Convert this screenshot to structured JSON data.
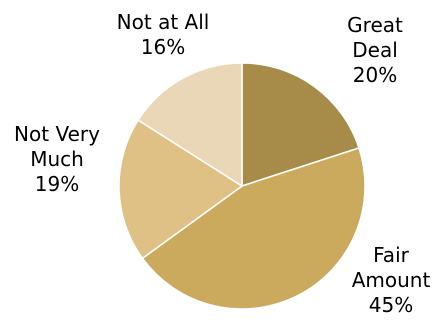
{
  "chart_data": {
    "type": "pie",
    "categories": [
      "Great Deal",
      "Fair Amount",
      "Not Very Much",
      "Not at All"
    ],
    "values": [
      20,
      45,
      19,
      16
    ],
    "value_suffix": "%",
    "colors": [
      "#a78b48",
      "#cbaa5e",
      "#dfc085",
      "#ead7b7"
    ],
    "slices": [
      {
        "label_lines": [
          "Great",
          "Deal"
        ],
        "percent_label": "20%"
      },
      {
        "label_lines": [
          "Fair",
          "Amount"
        ],
        "percent_label": "45%"
      },
      {
        "label_lines": [
          "Not Very",
          "Much"
        ],
        "percent_label": "19%"
      },
      {
        "label_lines": [
          "Not at All"
        ],
        "percent_label": "16%"
      }
    ],
    "start_angle": "12 o'clock",
    "direction": "clockwise",
    "legend": "none",
    "title": ""
  }
}
